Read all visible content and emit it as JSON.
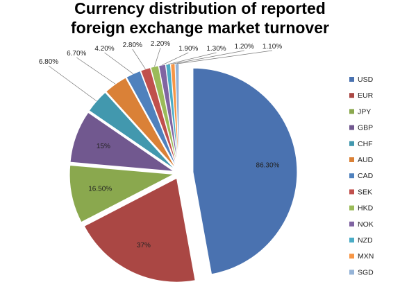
{
  "chart_data": {
    "type": "pie",
    "title_lines": [
      "Currency distribution of reported",
      "foreign exchange market turnover"
    ],
    "slices": [
      {
        "label": "USD",
        "value": 86.3,
        "data_label": "86.30%",
        "color": "#4a72b0"
      },
      {
        "label": "EUR",
        "value": 37.0,
        "data_label": "37%",
        "color": "#aa4744"
      },
      {
        "label": "JPY",
        "value": 16.5,
        "data_label": "16.50%",
        "color": "#8aa84e"
      },
      {
        "label": "GBP",
        "value": 15.0,
        "data_label": "15%",
        "color": "#71588f"
      },
      {
        "label": "CHF",
        "value": 6.8,
        "data_label": "6.80%",
        "color": "#4298ae"
      },
      {
        "label": "AUD",
        "value": 6.7,
        "data_label": "6.70%",
        "color": "#da8137"
      },
      {
        "label": "CAD",
        "value": 4.2,
        "data_label": "4.20%",
        "color": "#4f81bd"
      },
      {
        "label": "SEK",
        "value": 2.8,
        "data_label": "2.80%",
        "color": "#c0504d"
      },
      {
        "label": "HKD",
        "value": 2.2,
        "data_label": "2.20%",
        "color": "#9bbb59"
      },
      {
        "label": "NOK",
        "value": 1.9,
        "data_label": "1.90%",
        "color": "#8064a2"
      },
      {
        "label": "NZD",
        "value": 1.3,
        "data_label": "1.30%",
        "color": "#4bacc6"
      },
      {
        "label": "MXN",
        "value": 1.2,
        "data_label": "1.20%",
        "color": "#f79646"
      },
      {
        "label": "SGD",
        "value": 1.1,
        "data_label": "1.10%",
        "color": "#95b3d7"
      }
    ],
    "legend_position": "right",
    "exploded": true,
    "data_labels_shown": true
  }
}
